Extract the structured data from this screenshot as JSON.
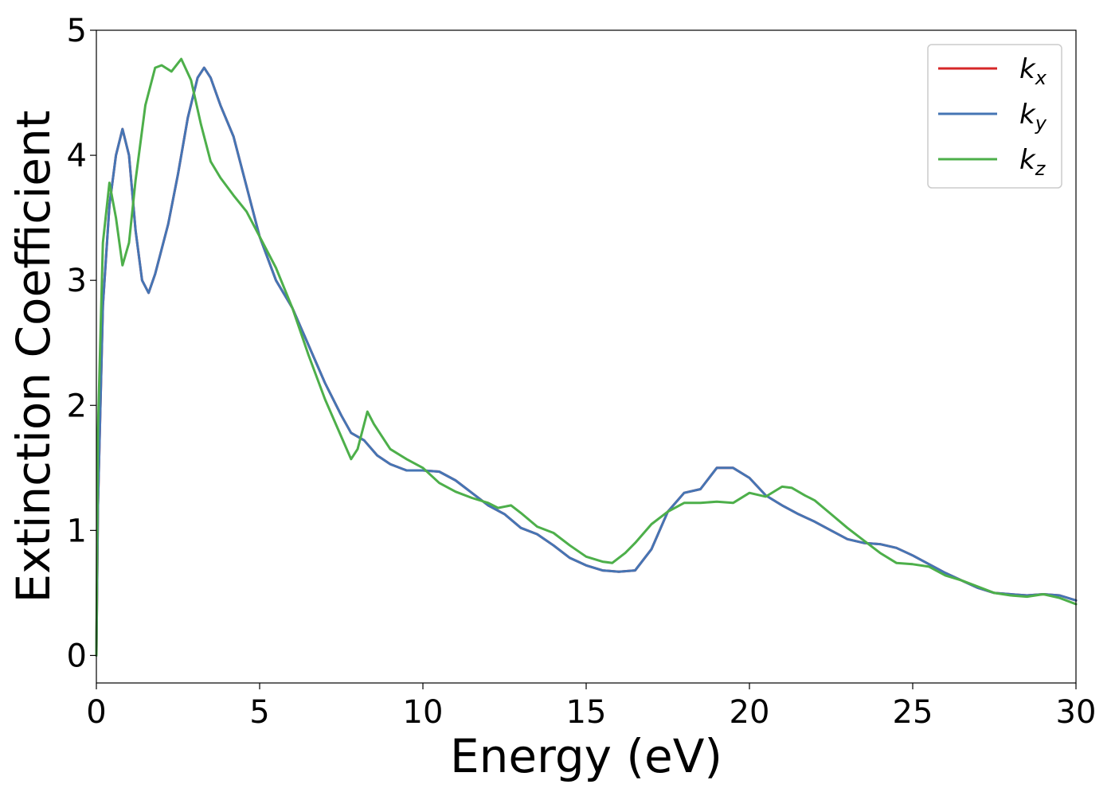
{
  "chart_data": {
    "type": "line",
    "title": "",
    "xlabel": "Energy (eV)",
    "ylabel": "Extinction Coefficient",
    "xlim": [
      0,
      30
    ],
    "ylim": [
      -0.22,
      5
    ],
    "xticks": [
      0,
      5,
      10,
      15,
      20,
      25,
      30
    ],
    "yticks": [
      0,
      1,
      2,
      3,
      4,
      5
    ],
    "grid": false,
    "legend_position": "top-right",
    "series": [
      {
        "name": "k_x",
        "label_main": "k",
        "label_sub": "x",
        "color": "#d62728",
        "x": [
          0,
          0.05,
          0.2,
          0.4,
          0.6,
          0.8,
          1.0,
          1.2,
          1.4,
          1.6,
          1.8,
          2.0,
          2.2,
          2.5,
          2.8,
          3.1,
          3.3,
          3.5,
          3.8,
          4.2,
          4.6,
          5.0,
          5.5,
          6.0,
          6.5,
          7.0,
          7.5,
          7.8,
          8.2,
          8.6,
          9.0,
          9.5,
          10.0,
          10.5,
          11.0,
          11.5,
          12.0,
          12.5,
          13.0,
          13.5,
          14.0,
          14.5,
          15.0,
          15.5,
          16.0,
          16.5,
          17.0,
          17.5,
          18.0,
          18.5,
          19.0,
          19.5,
          20.0,
          20.5,
          21.0,
          21.5,
          22.0,
          22.5,
          23.0,
          23.5,
          24.0,
          24.5,
          25.0,
          25.5,
          26.0,
          26.5,
          27.0,
          27.5,
          28.0,
          28.5,
          29.0,
          29.5,
          30.0
        ],
        "values": [
          0.0,
          1.2,
          2.8,
          3.6,
          4.0,
          4.21,
          4.0,
          3.4,
          3.0,
          2.9,
          3.05,
          3.25,
          3.45,
          3.85,
          4.3,
          4.62,
          4.7,
          4.62,
          4.4,
          4.15,
          3.75,
          3.35,
          3.0,
          2.78,
          2.48,
          2.18,
          1.92,
          1.78,
          1.72,
          1.6,
          1.53,
          1.48,
          1.48,
          1.47,
          1.4,
          1.3,
          1.2,
          1.13,
          1.02,
          0.97,
          0.88,
          0.78,
          0.72,
          0.68,
          0.67,
          0.68,
          0.85,
          1.15,
          1.3,
          1.33,
          1.5,
          1.5,
          1.42,
          1.28,
          1.2,
          1.13,
          1.07,
          1.0,
          0.93,
          0.9,
          0.89,
          0.86,
          0.8,
          0.73,
          0.66,
          0.6,
          0.54,
          0.5,
          0.49,
          0.48,
          0.49,
          0.48,
          0.44
        ]
      },
      {
        "name": "k_y",
        "label_main": "k",
        "label_sub": "y",
        "color": "#4575b4",
        "x": [
          0,
          0.05,
          0.2,
          0.4,
          0.6,
          0.8,
          1.0,
          1.2,
          1.4,
          1.6,
          1.8,
          2.0,
          2.2,
          2.5,
          2.8,
          3.1,
          3.3,
          3.5,
          3.8,
          4.2,
          4.6,
          5.0,
          5.5,
          6.0,
          6.5,
          7.0,
          7.5,
          7.8,
          8.2,
          8.6,
          9.0,
          9.5,
          10.0,
          10.5,
          11.0,
          11.5,
          12.0,
          12.5,
          13.0,
          13.5,
          14.0,
          14.5,
          15.0,
          15.5,
          16.0,
          16.5,
          17.0,
          17.5,
          18.0,
          18.5,
          19.0,
          19.5,
          20.0,
          20.5,
          21.0,
          21.5,
          22.0,
          22.5,
          23.0,
          23.5,
          24.0,
          24.5,
          25.0,
          25.5,
          26.0,
          26.5,
          27.0,
          27.5,
          28.0,
          28.5,
          29.0,
          29.5,
          30.0
        ],
        "values": [
          0.0,
          1.2,
          2.8,
          3.6,
          4.0,
          4.21,
          4.0,
          3.4,
          3.0,
          2.9,
          3.05,
          3.25,
          3.45,
          3.85,
          4.3,
          4.62,
          4.7,
          4.62,
          4.4,
          4.15,
          3.75,
          3.35,
          3.0,
          2.78,
          2.48,
          2.18,
          1.92,
          1.78,
          1.72,
          1.6,
          1.53,
          1.48,
          1.48,
          1.47,
          1.4,
          1.3,
          1.2,
          1.13,
          1.02,
          0.97,
          0.88,
          0.78,
          0.72,
          0.68,
          0.67,
          0.68,
          0.85,
          1.15,
          1.3,
          1.33,
          1.5,
          1.5,
          1.42,
          1.28,
          1.2,
          1.13,
          1.07,
          1.0,
          0.93,
          0.9,
          0.89,
          0.86,
          0.8,
          0.73,
          0.66,
          0.6,
          0.54,
          0.5,
          0.49,
          0.48,
          0.49,
          0.48,
          0.44
        ]
      },
      {
        "name": "k_z",
        "label_main": "k",
        "label_sub": "z",
        "color": "#4daf4a",
        "x": [
          0,
          0.05,
          0.2,
          0.4,
          0.6,
          0.8,
          1.0,
          1.2,
          1.5,
          1.8,
          2.0,
          2.3,
          2.6,
          2.9,
          3.2,
          3.5,
          3.8,
          4.2,
          4.6,
          5.0,
          5.5,
          6.0,
          6.5,
          7.0,
          7.5,
          7.8,
          8.0,
          8.3,
          8.5,
          9.0,
          9.5,
          10.0,
          10.5,
          11.0,
          11.5,
          12.0,
          12.3,
          12.7,
          13.0,
          13.5,
          14.0,
          14.5,
          15.0,
          15.5,
          15.8,
          16.2,
          16.5,
          17.0,
          17.5,
          18.0,
          18.5,
          19.0,
          19.5,
          20.0,
          20.5,
          21.0,
          21.3,
          21.7,
          22.0,
          22.5,
          23.0,
          23.5,
          24.0,
          24.5,
          25.0,
          25.5,
          26.0,
          26.5,
          27.0,
          27.5,
          28.0,
          28.5,
          29.0,
          29.5,
          30.0
        ],
        "values": [
          0.0,
          1.8,
          3.3,
          3.78,
          3.5,
          3.12,
          3.3,
          3.8,
          4.4,
          4.7,
          4.72,
          4.67,
          4.77,
          4.6,
          4.25,
          3.95,
          3.82,
          3.68,
          3.55,
          3.35,
          3.1,
          2.78,
          2.4,
          2.05,
          1.75,
          1.57,
          1.65,
          1.95,
          1.85,
          1.65,
          1.57,
          1.5,
          1.38,
          1.31,
          1.26,
          1.22,
          1.18,
          1.2,
          1.14,
          1.03,
          0.98,
          0.88,
          0.79,
          0.75,
          0.74,
          0.82,
          0.9,
          1.05,
          1.15,
          1.22,
          1.22,
          1.23,
          1.22,
          1.3,
          1.27,
          1.35,
          1.34,
          1.28,
          1.24,
          1.13,
          1.02,
          0.92,
          0.82,
          0.74,
          0.73,
          0.71,
          0.64,
          0.6,
          0.55,
          0.5,
          0.48,
          0.47,
          0.49,
          0.46,
          0.41
        ]
      }
    ]
  }
}
